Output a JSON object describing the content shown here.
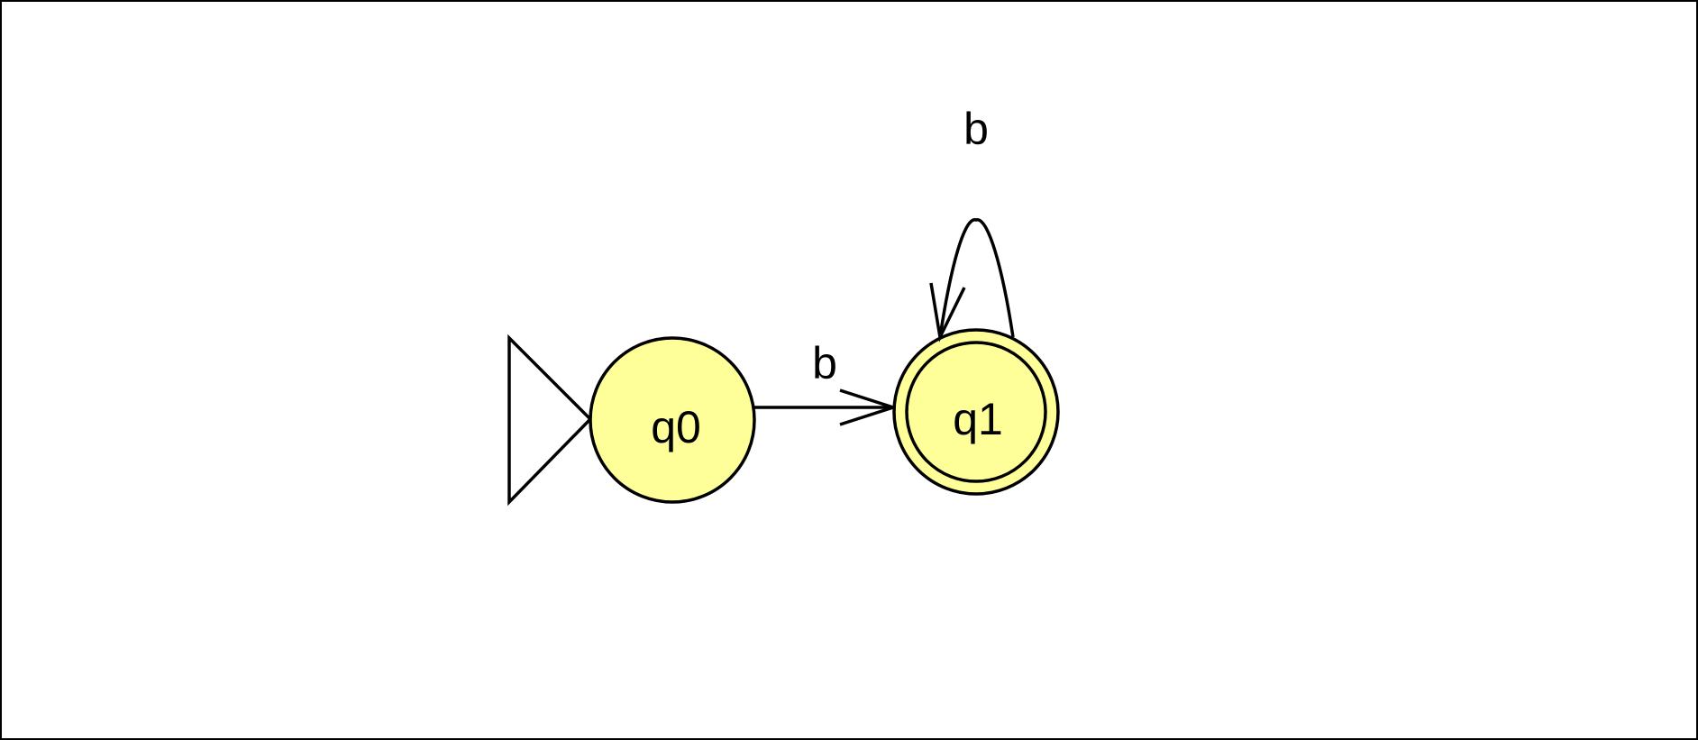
{
  "diagram": {
    "type": "finite-automaton",
    "colors": {
      "state_fill": "#ffff99",
      "stroke": "#000000",
      "background": "#ffffff"
    },
    "states": [
      {
        "id": "q0",
        "label": "q0",
        "initial": true,
        "accepting": false
      },
      {
        "id": "q1",
        "label": "q1",
        "initial": false,
        "accepting": true
      }
    ],
    "transitions": [
      {
        "from": "q0",
        "to": "q1",
        "label": "b"
      },
      {
        "from": "q1",
        "to": "q1",
        "label": "b"
      }
    ]
  }
}
